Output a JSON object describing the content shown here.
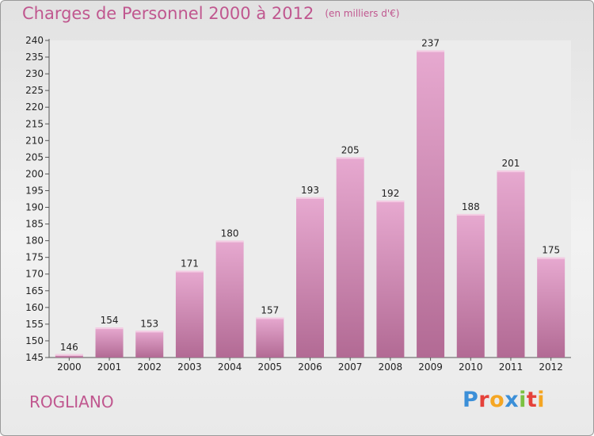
{
  "title": "Charges de Personnel 2000 à 2012",
  "subtitle": "(en milliers d'€)",
  "commune": "ROGLIANO",
  "logo": {
    "text": "Proxiti",
    "letter_colors": [
      "#3b8fd8",
      "#e5413a",
      "#f5a623",
      "#3b8fd8",
      "#7cc142",
      "#e5413a",
      "#f5a623"
    ]
  },
  "colors": {
    "accent": "#c0578f",
    "bar_top": "#e7a9d0",
    "bar_bottom": "#b26a94"
  },
  "chart_data": {
    "type": "bar",
    "categories": [
      "2000",
      "2001",
      "2002",
      "2003",
      "2004",
      "2005",
      "2006",
      "2007",
      "2008",
      "2009",
      "2010",
      "2011",
      "2012"
    ],
    "values": [
      146,
      154,
      153,
      171,
      180,
      157,
      193,
      205,
      192,
      237,
      188,
      201,
      175
    ],
    "ylim": [
      145,
      240
    ],
    "yticks": [
      145,
      150,
      155,
      160,
      165,
      170,
      175,
      180,
      185,
      190,
      195,
      200,
      205,
      210,
      215,
      220,
      225,
      230,
      235,
      240
    ],
    "grid": false
  }
}
